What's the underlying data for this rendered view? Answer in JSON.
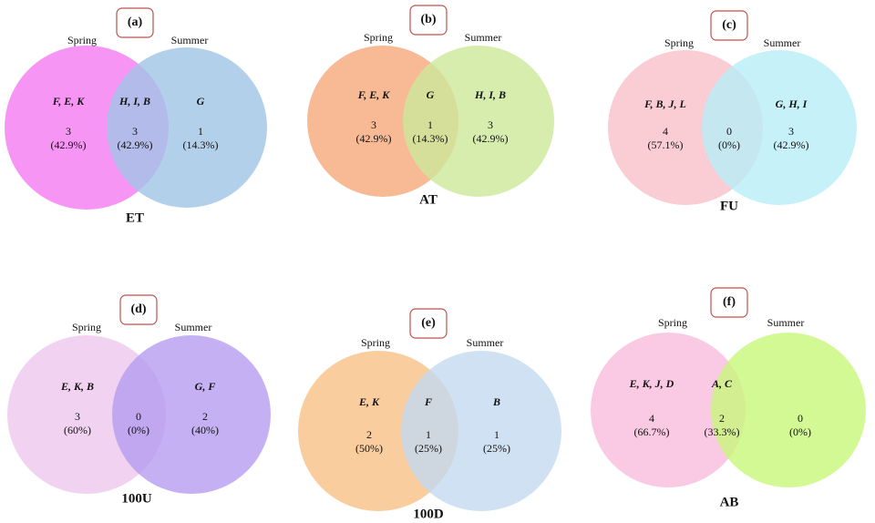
{
  "panels": [
    {
      "label": "(a)",
      "name": "ET",
      "left_set": "Spring",
      "right_set": "Summer",
      "left_color": "#f57af2",
      "right_color": "#a0c4e6",
      "regions": [
        {
          "members": "F, E, K",
          "count": 3,
          "percent": "(42.9%)"
        },
        {
          "members": "H, I, B",
          "count": 3,
          "percent": "(42.9%)"
        },
        {
          "members": "G",
          "count": 1,
          "percent": "(14.3%)"
        }
      ]
    },
    {
      "label": "(b)",
      "name": "AT",
      "left_set": "Spring",
      "right_set": "Summer",
      "left_color": "#f6a87a",
      "right_color": "#cce99a",
      "regions": [
        {
          "members": "F, E, K",
          "count": 3,
          "percent": "(42.9%)"
        },
        {
          "members": "G",
          "count": 1,
          "percent": "(14.3%)"
        },
        {
          "members": "H, I, B",
          "count": 3,
          "percent": "(42.9%)"
        }
      ]
    },
    {
      "label": "(c)",
      "name": "FU",
      "left_set": "Spring",
      "right_set": "Summer",
      "left_color": "#f8c0c8",
      "right_color": "#b8eef8",
      "regions": [
        {
          "members": "F, B, J, L",
          "count": 4,
          "percent": "(57.1%)"
        },
        {
          "members": null,
          "count": 0,
          "percent": "(0%)"
        },
        {
          "members": "G, H, I",
          "count": 3,
          "percent": "(42.9%)"
        }
      ]
    },
    {
      "label": "(d)",
      "name": "100U",
      "left_set": "Spring",
      "right_set": "Summer",
      "left_color": "#eec8ee",
      "right_color": "#b59cf0",
      "regions": [
        {
          "members": "E, K, B",
          "count": 3,
          "percent": "(60%)"
        },
        {
          "members": null,
          "count": 0,
          "percent": "(0%)"
        },
        {
          "members": "G, F",
          "count": 2,
          "percent": "(40%)"
        }
      ]
    },
    {
      "label": "(e)",
      "name": "100D",
      "left_set": "Spring",
      "right_set": "Summer",
      "left_color": "#f7c086",
      "right_color": "#c3d9ef",
      "regions": [
        {
          "members": "E, K",
          "count": 2,
          "percent": "(50%)"
        },
        {
          "members": "F",
          "count": 1,
          "percent": "(25%)"
        },
        {
          "members": "B",
          "count": 1,
          "percent": "(25%)"
        }
      ]
    },
    {
      "label": "(f)",
      "name": "AB",
      "left_set": "Spring",
      "right_set": "Summer",
      "left_color": "#f9bcdc",
      "right_color": "#c8f77a",
      "regions": [
        {
          "members": "E, K, J, D",
          "count": 4,
          "percent": "(66.7%)"
        },
        {
          "members": "A, C",
          "count": 2,
          "percent": "(33.3%)"
        },
        {
          "members": null,
          "count": 0,
          "percent": "(0%)"
        }
      ]
    }
  ]
}
